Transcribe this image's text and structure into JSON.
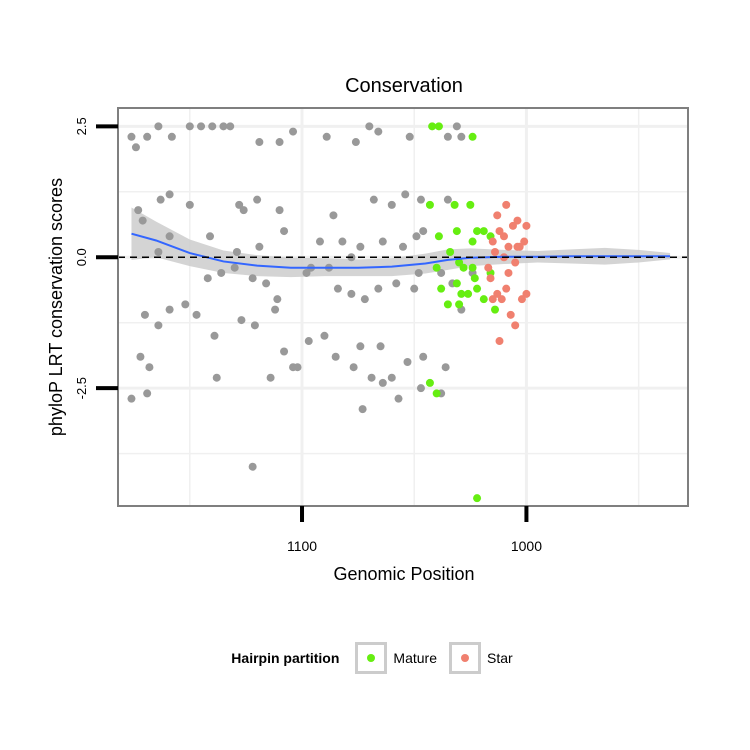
{
  "colors": {
    "background_point": "#999999",
    "mature": "#66ee11",
    "star": "#f0806f",
    "smooth_line": "#3366ff",
    "ribbon": "#cccccc",
    "grid": "#f0f0f0",
    "border": "#7f7f7f"
  },
  "legend": {
    "title": "Hairpin partition",
    "items": [
      {
        "label": "Mature",
        "color": "#66ee11"
      },
      {
        "label": "Star",
        "color": "#f0806f"
      }
    ]
  },
  "chart_data": {
    "type": "scatter",
    "title": "Conservation",
    "xlabel": "Genomic Position",
    "ylabel": "phyloP LRT conservation scores",
    "x_reversed": true,
    "xlim": [
      1182,
      928
    ],
    "ylim": [
      -4.75,
      2.85
    ],
    "x_ticks": [
      1100,
      1000
    ],
    "y_ticks": [
      2.5,
      0.0,
      -2.5
    ],
    "x_tick_labels": [
      "1100",
      "1000"
    ],
    "y_tick_labels": [
      "2.5",
      "0.0",
      "-2.5"
    ],
    "reference_line": {
      "y": 0,
      "style": "dashed"
    },
    "grid": true,
    "legend_position": "bottom",
    "series": [
      {
        "name": "",
        "color": "#999999",
        "points": [
          [
            1176,
            2.3
          ],
          [
            1174,
            2.1
          ],
          [
            1169,
            2.3
          ],
          [
            1164,
            2.5
          ],
          [
            1158,
            2.3
          ],
          [
            1150,
            2.5
          ],
          [
            1145,
            2.5
          ],
          [
            1140,
            2.5
          ],
          [
            1135,
            2.5
          ],
          [
            1132,
            2.5
          ],
          [
            1119,
            2.2
          ],
          [
            1110,
            2.2
          ],
          [
            1104,
            2.4
          ],
          [
            1089,
            2.3
          ],
          [
            1076,
            2.2
          ],
          [
            1070,
            2.5
          ],
          [
            1066,
            2.4
          ],
          [
            1052,
            2.3
          ],
          [
            1035,
            2.3
          ],
          [
            1031,
            2.5
          ],
          [
            1029,
            2.3
          ],
          [
            1173,
            0.9
          ],
          [
            1171,
            0.7
          ],
          [
            1163,
            1.1
          ],
          [
            1159,
            1.2
          ],
          [
            1150,
            1.0
          ],
          [
            1128,
            1.0
          ],
          [
            1126,
            0.9
          ],
          [
            1120,
            1.1
          ],
          [
            1110,
            0.9
          ],
          [
            1086,
            0.8
          ],
          [
            1068,
            1.1
          ],
          [
            1060,
            1.0
          ],
          [
            1054,
            1.2
          ],
          [
            1047,
            1.1
          ],
          [
            1035,
            1.1
          ],
          [
            1164,
            0.1
          ],
          [
            1159,
            0.4
          ],
          [
            1141,
            0.4
          ],
          [
            1129,
            0.1
          ],
          [
            1119,
            0.2
          ],
          [
            1108,
            0.5
          ],
          [
            1092,
            0.3
          ],
          [
            1082,
            0.3
          ],
          [
            1078,
            0.0
          ],
          [
            1074,
            0.2
          ],
          [
            1064,
            0.3
          ],
          [
            1055,
            0.2
          ],
          [
            1049,
            0.4
          ],
          [
            1046,
            0.5
          ],
          [
            1142,
            -0.4
          ],
          [
            1136,
            -0.3
          ],
          [
            1130,
            -0.2
          ],
          [
            1122,
            -0.4
          ],
          [
            1116,
            -0.5
          ],
          [
            1111,
            -0.8
          ],
          [
            1098,
            -0.3
          ],
          [
            1096,
            -0.2
          ],
          [
            1088,
            -0.2
          ],
          [
            1084,
            -0.6
          ],
          [
            1078,
            -0.7
          ],
          [
            1072,
            -0.8
          ],
          [
            1066,
            -0.6
          ],
          [
            1058,
            -0.5
          ],
          [
            1050,
            -0.6
          ],
          [
            1048,
            -0.3
          ],
          [
            1038,
            -0.3
          ],
          [
            1033,
            -0.5
          ],
          [
            1029,
            -1.0
          ],
          [
            1024,
            -0.3
          ],
          [
            1170,
            -1.1
          ],
          [
            1164,
            -1.3
          ],
          [
            1159,
            -1.0
          ],
          [
            1152,
            -0.9
          ],
          [
            1147,
            -1.1
          ],
          [
            1139,
            -1.5
          ],
          [
            1127,
            -1.2
          ],
          [
            1121,
            -1.3
          ],
          [
            1112,
            -1.0
          ],
          [
            1108,
            -1.8
          ],
          [
            1104,
            -2.1
          ],
          [
            1090,
            -1.5
          ],
          [
            1085,
            -1.9
          ],
          [
            1077,
            -2.1
          ],
          [
            1074,
            -1.7
          ],
          [
            1069,
            -2.3
          ],
          [
            1065,
            -1.7
          ],
          [
            1060,
            -2.3
          ],
          [
            1053,
            -2.0
          ],
          [
            1046,
            -1.9
          ],
          [
            1036,
            -2.1
          ],
          [
            1172,
            -1.9
          ],
          [
            1168,
            -2.1
          ],
          [
            1176,
            -2.7
          ],
          [
            1169,
            -2.6
          ],
          [
            1138,
            -2.3
          ],
          [
            1114,
            -2.3
          ],
          [
            1102,
            -2.1
          ],
          [
            1097,
            -1.6
          ],
          [
            1073,
            -2.9
          ],
          [
            1064,
            -2.4
          ],
          [
            1057,
            -2.7
          ],
          [
            1047,
            -2.5
          ],
          [
            1038,
            -2.6
          ],
          [
            1122,
            -4.0
          ]
        ]
      },
      {
        "name": "Mature",
        "color": "#66ee11",
        "points": [
          [
            1042,
            2.5
          ],
          [
            1039,
            2.5
          ],
          [
            1024,
            2.3
          ],
          [
            1043,
            1.0
          ],
          [
            1032,
            1.0
          ],
          [
            1025,
            1.0
          ],
          [
            1039,
            0.4
          ],
          [
            1031,
            0.5
          ],
          [
            1022,
            0.5
          ],
          [
            1019,
            0.5
          ],
          [
            1016,
            0.4
          ],
          [
            1024,
            0.3
          ],
          [
            1040,
            -0.2
          ],
          [
            1034,
            0.1
          ],
          [
            1030,
            -0.1
          ],
          [
            1028,
            -0.2
          ],
          [
            1024,
            -0.2
          ],
          [
            1016,
            -0.3
          ],
          [
            1038,
            -0.6
          ],
          [
            1031,
            -0.5
          ],
          [
            1029,
            -0.7
          ],
          [
            1026,
            -0.7
          ],
          [
            1022,
            -0.6
          ],
          [
            1019,
            -0.8
          ],
          [
            1035,
            -0.9
          ],
          [
            1023,
            -0.4
          ],
          [
            1014,
            -1.0
          ],
          [
            1030,
            -0.9
          ],
          [
            1043,
            -2.4
          ],
          [
            1040,
            -2.6
          ],
          [
            1022,
            -4.6
          ]
        ]
      },
      {
        "name": "Star",
        "color": "#f0806f",
        "points": [
          [
            1004,
            0.7
          ],
          [
            1000,
            0.6
          ],
          [
            1006,
            0.6
          ],
          [
            1010,
            0.4
          ],
          [
            1012,
            0.5
          ],
          [
            1015,
            0.3
          ],
          [
            1008,
            0.2
          ],
          [
            1004,
            0.2
          ],
          [
            1001,
            0.3
          ],
          [
            1013,
            0.8
          ],
          [
            1009,
            1.0
          ],
          [
            1017,
            -0.2
          ],
          [
            1014,
            0.1
          ],
          [
            1010,
            0.0
          ],
          [
            1008,
            -0.3
          ],
          [
            1005,
            -0.1
          ],
          [
            1003,
            0.2
          ],
          [
            1016,
            -0.4
          ],
          [
            1013,
            -0.7
          ],
          [
            1009,
            -0.6
          ],
          [
            1011,
            -0.8
          ],
          [
            1015,
            -0.8
          ],
          [
            1002,
            -0.8
          ],
          [
            1000,
            -0.7
          ],
          [
            1007,
            -1.1
          ],
          [
            1005,
            -1.3
          ],
          [
            1012,
            -1.6
          ]
        ]
      }
    ],
    "smooth_fit": [
      {
        "x": 1176,
        "y": 0.45,
        "lo": -0.05,
        "hi": 0.95
      },
      {
        "x": 1165,
        "y": 0.32,
        "lo": 0.0,
        "hi": 0.68
      },
      {
        "x": 1150,
        "y": 0.08,
        "lo": -0.17,
        "hi": 0.34
      },
      {
        "x": 1135,
        "y": -0.08,
        "lo": -0.3,
        "hi": 0.13
      },
      {
        "x": 1120,
        "y": -0.16,
        "lo": -0.36,
        "hi": 0.04
      },
      {
        "x": 1105,
        "y": -0.2,
        "lo": -0.38,
        "hi": -0.01
      },
      {
        "x": 1090,
        "y": -0.2,
        "lo": -0.36,
        "hi": -0.02
      },
      {
        "x": 1075,
        "y": -0.2,
        "lo": -0.36,
        "hi": -0.04
      },
      {
        "x": 1060,
        "y": -0.18,
        "lo": -0.36,
        "hi": -0.02
      },
      {
        "x": 1045,
        "y": -0.12,
        "lo": -0.31,
        "hi": 0.07
      },
      {
        "x": 1035,
        "y": -0.05,
        "lo": -0.24,
        "hi": 0.15
      },
      {
        "x": 1025,
        "y": -0.01,
        "lo": -0.17,
        "hi": 0.17
      },
      {
        "x": 1010,
        "y": 0.01,
        "lo": -0.13,
        "hi": 0.14
      },
      {
        "x": 995,
        "y": 0.01,
        "lo": -0.1,
        "hi": 0.12
      },
      {
        "x": 980,
        "y": 0.02,
        "lo": -0.12,
        "hi": 0.15
      },
      {
        "x": 965,
        "y": 0.02,
        "lo": -0.14,
        "hi": 0.18
      },
      {
        "x": 950,
        "y": 0.02,
        "lo": -0.1,
        "hi": 0.14
      },
      {
        "x": 936,
        "y": 0.02,
        "lo": -0.04,
        "hi": 0.08
      }
    ]
  }
}
